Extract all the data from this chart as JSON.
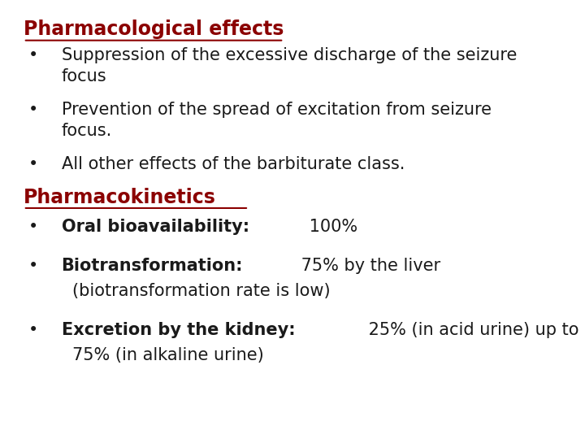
{
  "background_color": "#ffffff",
  "heading1": "Pharmacological effects",
  "heading1_color": "#8B0000",
  "heading1_fontsize": 17,
  "heading2": "Pharmacokinetics",
  "heading2_color": "#8B0000",
  "heading2_fontsize": 17,
  "bullet_color": "#1a1a1a",
  "bullet_fontsize": 15,
  "section1_bullets": [
    "Suppression of the excessive discharge of the seizure\nfocus",
    "Prevention of the spread of excitation from seizure\nfocus.",
    "All other effects of the barbiturate class."
  ],
  "section2_bullets": [
    [
      {
        "text": "Oral bioavailability:",
        "bold": true
      },
      {
        "text": " 100%",
        "bold": false
      }
    ],
    [
      {
        "text": "Biotransformation:",
        "bold": true
      },
      {
        "text": " 75% by the liver\n(biotransformation rate is low)",
        "bold": false
      }
    ],
    [
      {
        "text": "Excretion by the kidney:",
        "bold": true
      },
      {
        "text": " 25% (in acid urine) up to\n75% (in alkaline urine)",
        "bold": false
      }
    ]
  ]
}
